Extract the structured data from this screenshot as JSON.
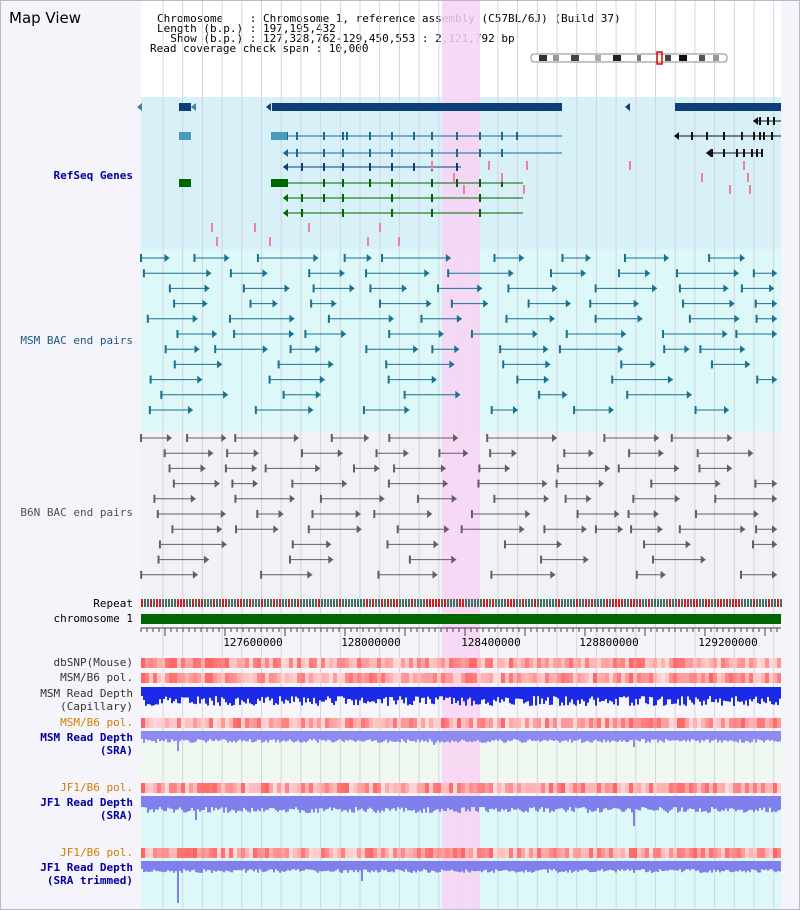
{
  "view_title": "Map View",
  "info": {
    "lines": [
      "Chromosome    : Chromosome 1, reference assembly (C57BL/6J) (Build 37)",
      "Length (b.p.) : 197,195,432",
      "  Show (b.p.) : 127,328,762-129,450,553 : 2,121,792 bp",
      "Read coverage check span : 10,000"
    ]
  },
  "tracks": {
    "refseq": "RefSeq Genes",
    "msm_bac": "MSM BAC end pairs",
    "b6n_bac": "B6N BAC end pairs",
    "repeat": "Repeat",
    "chromosome": "chromosome 1",
    "dbsnp": "dbSNP(Mouse)",
    "msm_b6_pol": "MSM/B6 pol.",
    "msm_depth_cap_1": "MSM Read Depth",
    "msm_depth_cap_2": "(Capillary)",
    "msm_b6_pol_2": "MSM/B6 pol.",
    "msm_depth_sra_1": "MSM Read Depth",
    "msm_depth_sra_2": "(SRA)",
    "jf1_b6_pol": "JF1/B6 pol.",
    "jf1_depth_sra_1": "JF1 Read Depth",
    "jf1_depth_sra_2": "(SRA)",
    "jf1_b6_pol_2": "JF1/B6 pol.",
    "jf1_depth_trim_1": "JF1 Read Depth",
    "jf1_depth_trim_2": "(SRA trimmed)"
  },
  "axis": {
    "ticks": [
      "127600000",
      "128000000",
      "128400000",
      "128800000",
      "129200000"
    ]
  },
  "colors": {
    "refseq_bg": "#d8f0f8",
    "msm_bg": "#dcf8f8",
    "b6n_bg": "#f2f2f6",
    "highlight": "#f8d4f4",
    "gene": "#0e3e78",
    "msm_pair": "#1a7090",
    "b6n_pair": "#606060",
    "chromosome": "#006600",
    "label_default": "#222222",
    "label_blue": "#0000a0",
    "label_orange": "#d08000",
    "label_navy": "#00008b"
  }
}
